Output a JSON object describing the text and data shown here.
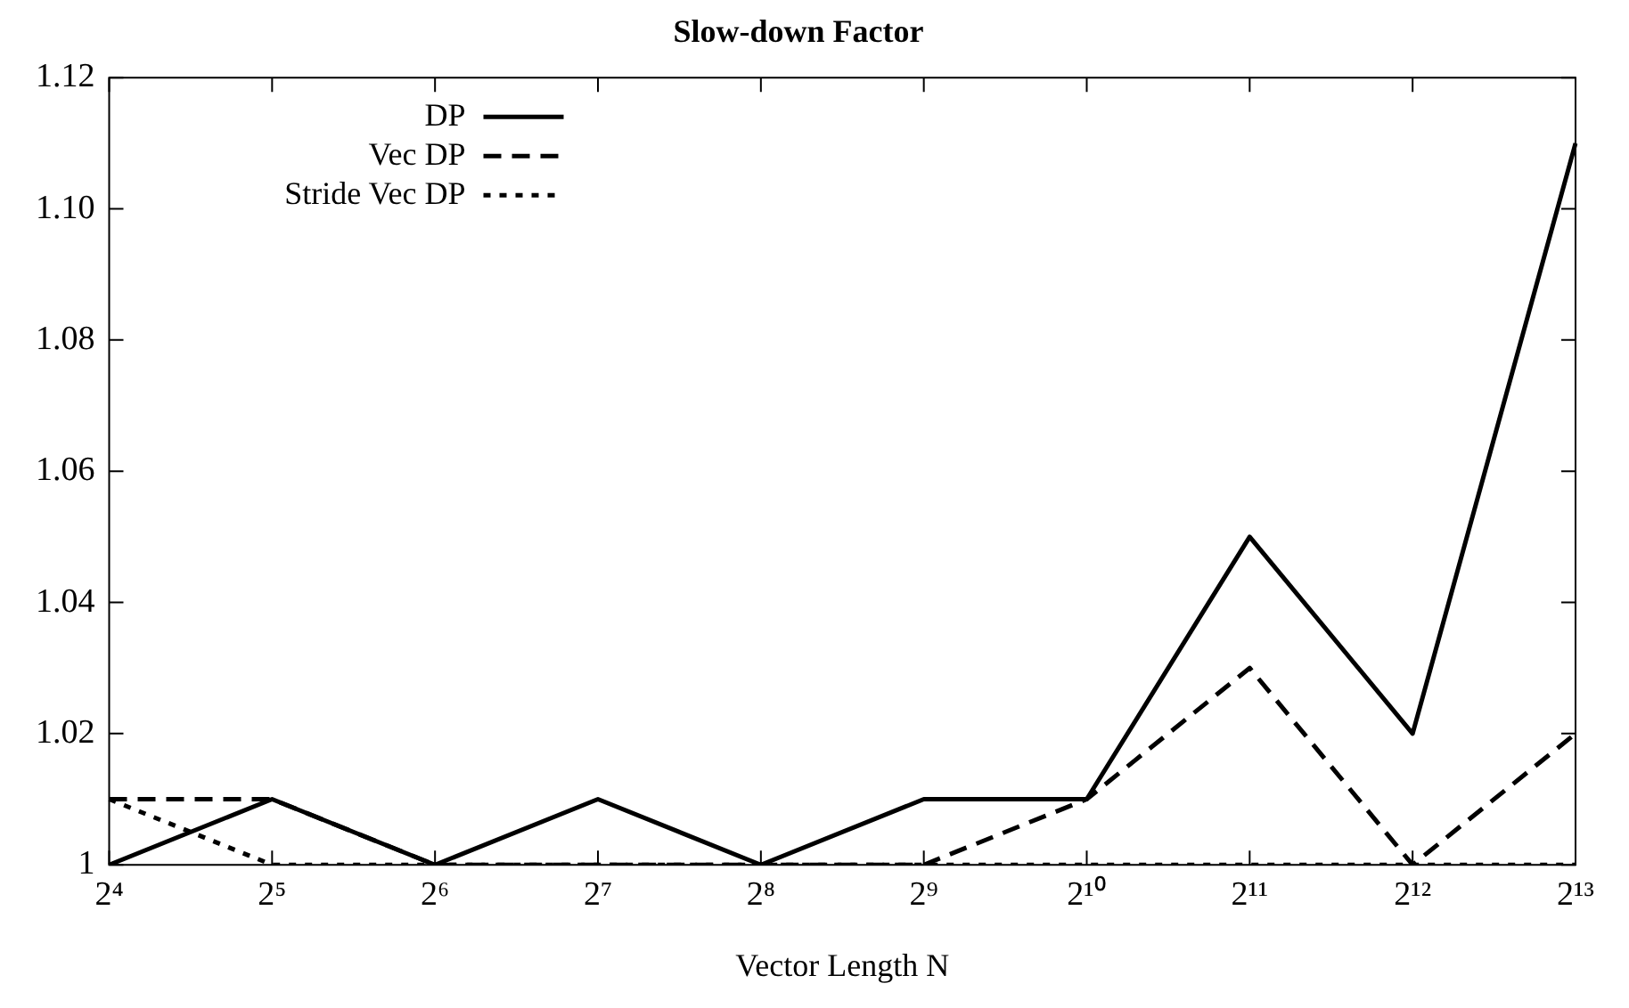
{
  "chart_data": {
    "type": "line",
    "title": "Slow-down Factor",
    "xlabel": "Vector Length N",
    "categories": [
      "2⁴",
      "2⁵",
      "2⁶",
      "2⁷",
      "2⁸",
      "2⁹",
      "2¹⁰",
      "2¹¹",
      "2¹²",
      "2¹³"
    ],
    "series": [
      {
        "name": "DP",
        "color": "#000000",
        "line_style": "solid",
        "values": [
          1,
          1.01,
          1,
          1.01,
          1,
          1.01,
          1.01,
          1.05,
          1.02,
          1.11
        ]
      },
      {
        "name": "Vec DP",
        "color": "#000000",
        "line_style": "dashed",
        "values": [
          1.01,
          1.01,
          1,
          1,
          1,
          1,
          1.01,
          1.03,
          1,
          1.02
        ]
      },
      {
        "name": "Stride Vec DP",
        "color": "#000000",
        "line_style": "dotted",
        "values": [
          1.01,
          1,
          1,
          1,
          1,
          1,
          1,
          1,
          1,
          1
        ]
      }
    ],
    "ylim": [
      1,
      1.12
    ],
    "yticks": [
      1,
      1.02,
      1.04,
      1.06,
      1.08,
      {
        "value": 1.1,
        "label": "1.10"
      },
      1.12
    ],
    "grid": false,
    "legend": "top left",
    "marker": "none"
  }
}
